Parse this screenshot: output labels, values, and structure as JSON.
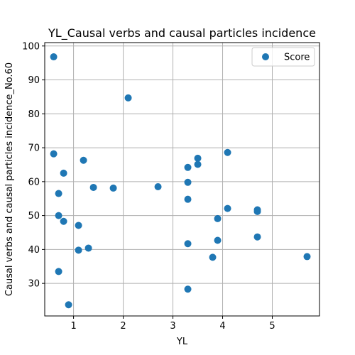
{
  "chart_data": {
    "type": "scatter",
    "title": "YL_Causal verbs and causal particles incidence",
    "xlabel": "YL",
    "ylabel": "Causal verbs and causal particles incidence_No.60",
    "xlim": [
      0.42,
      5.95
    ],
    "ylim": [
      20.4,
      101.0
    ],
    "xticks": [
      1,
      2,
      3,
      4,
      5
    ],
    "yticks": [
      30,
      40,
      50,
      60,
      70,
      80,
      90,
      100
    ],
    "grid": true,
    "legend_position": "top-right",
    "series": [
      {
        "name": "Score",
        "color": "#1f77b4",
        "points": [
          {
            "x": 0.6,
            "y": 96.8
          },
          {
            "x": 0.6,
            "y": 68.2
          },
          {
            "x": 0.7,
            "y": 56.5
          },
          {
            "x": 0.7,
            "y": 50.0
          },
          {
            "x": 0.7,
            "y": 33.5
          },
          {
            "x": 0.8,
            "y": 62.5
          },
          {
            "x": 0.8,
            "y": 48.3
          },
          {
            "x": 0.9,
            "y": 23.7
          },
          {
            "x": 1.1,
            "y": 47.1
          },
          {
            "x": 1.1,
            "y": 39.8
          },
          {
            "x": 1.2,
            "y": 66.3
          },
          {
            "x": 1.3,
            "y": 40.4
          },
          {
            "x": 1.4,
            "y": 58.3
          },
          {
            "x": 1.8,
            "y": 58.1
          },
          {
            "x": 2.1,
            "y": 84.7
          },
          {
            "x": 2.7,
            "y": 58.5
          },
          {
            "x": 3.3,
            "y": 64.2
          },
          {
            "x": 3.3,
            "y": 59.8
          },
          {
            "x": 3.3,
            "y": 54.8
          },
          {
            "x": 3.3,
            "y": 41.7
          },
          {
            "x": 3.3,
            "y": 28.3
          },
          {
            "x": 3.5,
            "y": 66.9
          },
          {
            "x": 3.5,
            "y": 65.1
          },
          {
            "x": 3.8,
            "y": 37.7
          },
          {
            "x": 3.9,
            "y": 49.1
          },
          {
            "x": 3.9,
            "y": 42.7
          },
          {
            "x": 4.1,
            "y": 68.6
          },
          {
            "x": 4.1,
            "y": 52.1
          },
          {
            "x": 4.7,
            "y": 51.7
          },
          {
            "x": 4.7,
            "y": 51.2
          },
          {
            "x": 4.7,
            "y": 43.7
          },
          {
            "x": 5.7,
            "y": 37.9
          }
        ]
      }
    ]
  }
}
